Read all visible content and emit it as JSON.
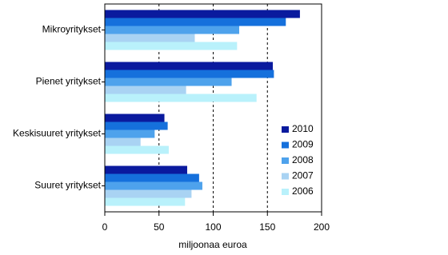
{
  "chart_data": {
    "type": "hbar",
    "categories": [
      "Mikroyritykset",
      "Pienet yritykset",
      "Keskisuuret yritykset",
      "Suuret yritykset"
    ],
    "series": [
      {
        "name": "2010",
        "color": "#0a1a9e",
        "values": [
          180,
          155,
          55,
          76
        ]
      },
      {
        "name": "2009",
        "color": "#1570dc",
        "values": [
          167,
          156,
          58,
          87
        ]
      },
      {
        "name": "2008",
        "color": "#4ea2ec",
        "values": [
          124,
          117,
          46,
          90
        ]
      },
      {
        "name": "2007",
        "color": "#a9d3f3",
        "values": [
          83,
          75,
          33,
          80
        ]
      },
      {
        "name": "2006",
        "color": "#b9f1fb",
        "values": [
          122,
          140,
          59,
          74
        ]
      }
    ],
    "xlabel": "miljoonaa euroa",
    "xlim": [
      0,
      200
    ],
    "xticks": [
      0,
      50,
      100,
      150,
      200
    ],
    "grid": true,
    "legend": "right"
  }
}
